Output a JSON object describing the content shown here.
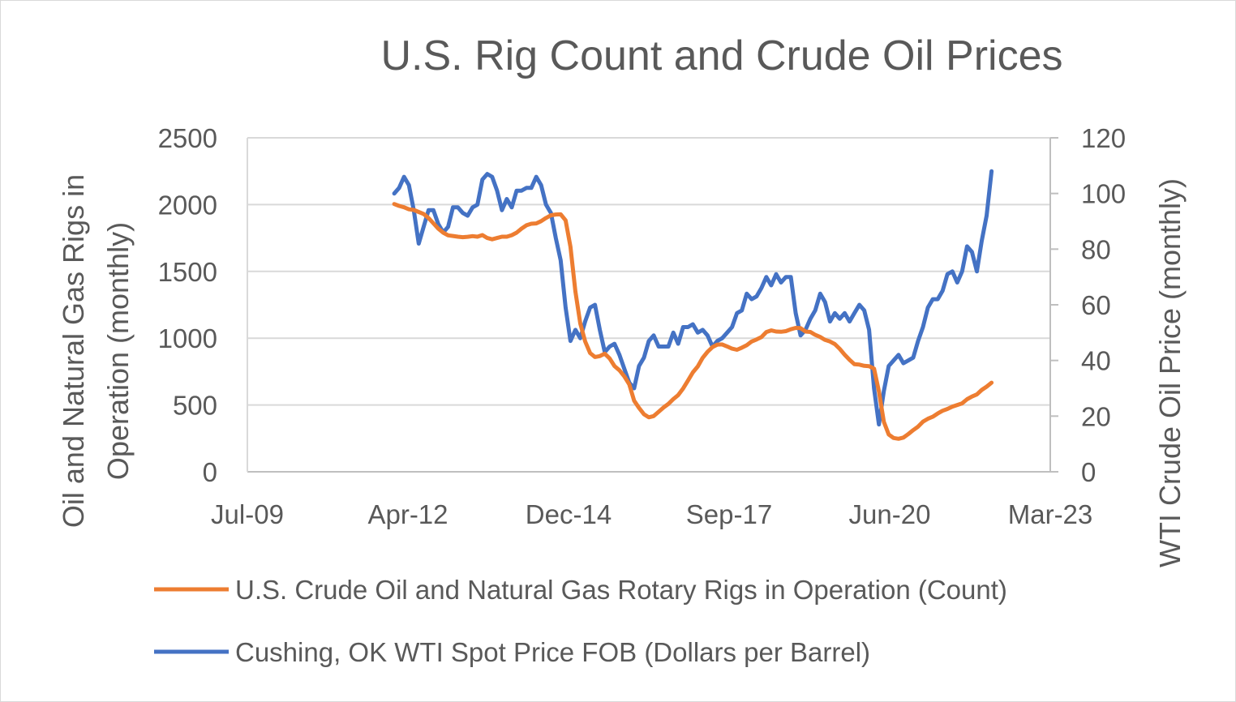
{
  "chart_data": {
    "type": "line",
    "title": "U.S. Rig Count and Crude Oil Prices",
    "ylabel_left": [
      "Oil  and Natural Gas Rigs in",
      "Operation (monthly)"
    ],
    "ylabel_right": "WTI Crude Oil Price (monthly)",
    "xlabel": "",
    "x_ticks": [
      "Jul-09",
      "Apr-12",
      "Dec-14",
      "Sep-17",
      "Jun-20",
      "Mar-23"
    ],
    "x_range": [
      "2009-07",
      "2023-03"
    ],
    "ylim_left": [
      0,
      2500
    ],
    "y_ticks_left": [
      "0",
      "500",
      "1000",
      "1500",
      "2000",
      "2500"
    ],
    "ylim_right": [
      0,
      120
    ],
    "y_ticks_right": [
      "0",
      "20",
      "40",
      "60",
      "80",
      "100",
      "120"
    ],
    "grid": true,
    "legend_position": "bottom",
    "start_month": "2012-01",
    "series": [
      {
        "name": "U.S. Crude Oil and Natural Gas Rotary Rigs in Operation (Count)",
        "axis": "left",
        "color": "#ED7D31",
        "values": [
          2004,
          1990,
          1980,
          1965,
          1960,
          1945,
          1930,
          1900,
          1860,
          1820,
          1790,
          1770,
          1765,
          1760,
          1756,
          1759,
          1764,
          1760,
          1772,
          1750,
          1740,
          1750,
          1760,
          1760,
          1771,
          1790,
          1820,
          1845,
          1857,
          1859,
          1876,
          1900,
          1920,
          1926,
          1927,
          1882,
          1683,
          1348,
          1110,
          976,
          889,
          859,
          866,
          884,
          848,
          791,
          760,
          714,
          654,
          532,
          478,
          431,
          408,
          417,
          449,
          481,
          508,
          544,
          574,
          624,
          683,
          744,
          789,
          853,
          898,
          933,
          952,
          953,
          938,
          922,
          913,
          929,
          947,
          975,
          990,
          1008,
          1046,
          1058,
          1050,
          1048,
          1053,
          1067,
          1077,
          1075,
          1050,
          1047,
          1025,
          1009,
          987,
          975,
          956,
          920,
          876,
          838,
          805,
          802,
          793,
          790,
          772,
          602,
          374,
          279,
          253,
          247,
          256,
          282,
          312,
          338,
          375,
          397,
          412,
          436,
          457,
          470,
          488,
          500,
          512,
          543,
          563,
          579,
          613,
          637,
          667
        ]
      },
      {
        "name": "Cushing, OK WTI Spot Price FOB (Dollars per Barrel)",
        "axis": "right",
        "color": "#4472C4",
        "values": [
          100,
          102,
          106,
          103,
          94,
          82,
          88,
          94,
          94,
          89,
          86,
          88,
          95,
          95,
          93,
          92,
          95,
          96,
          105,
          107,
          106,
          101,
          94,
          98,
          95,
          101,
          101,
          102,
          102,
          106,
          103,
          96,
          93,
          84,
          76,
          59,
          47,
          51,
          48,
          54,
          59,
          60,
          51,
          43,
          45,
          46,
          42,
          37,
          32,
          30,
          38,
          41,
          47,
          49,
          45,
          45,
          45,
          50,
          46,
          52,
          52,
          53,
          50,
          51,
          49,
          45,
          47,
          48,
          50,
          52,
          57,
          58,
          64,
          62,
          63,
          66,
          70,
          67,
          71,
          68,
          70,
          70,
          57,
          49,
          51,
          55,
          58,
          64,
          61,
          54,
          57,
          55,
          57,
          54,
          57,
          60,
          58,
          51,
          30,
          17,
          29,
          38,
          40,
          42,
          39,
          40,
          41,
          47,
          52,
          59,
          62,
          62,
          65,
          71,
          72,
          68,
          72,
          81,
          79,
          72,
          83,
          92,
          108
        ]
      }
    ]
  }
}
